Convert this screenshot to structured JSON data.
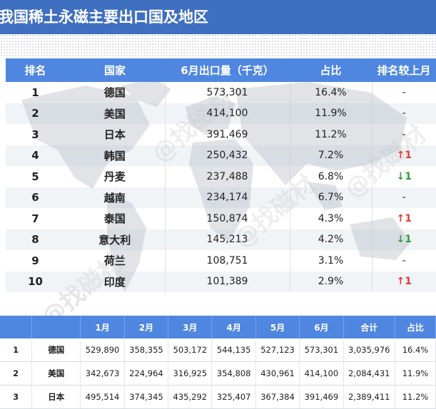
{
  "title": "我国稀土永磁主要出口国及地区",
  "main_table": {
    "headers": [
      "排名",
      "国家",
      "6月出口量（千克）",
      "占比",
      "排名较上月"
    ],
    "rows": [
      {
        "rank": "1",
        "country": "德国",
        "qty": "573,301",
        "share": "16.4%",
        "change": "-",
        "dir": "none"
      },
      {
        "rank": "2",
        "country": "美国",
        "qty": "414,100",
        "share": "11.9%",
        "change": "-",
        "dir": "none"
      },
      {
        "rank": "3",
        "country": "日本",
        "qty": "391,469",
        "share": "11.2%",
        "change": "-",
        "dir": "none"
      },
      {
        "rank": "4",
        "country": "韩国",
        "qty": "250,432",
        "share": "7.2%",
        "change": "↑1",
        "dir": "up"
      },
      {
        "rank": "5",
        "country": "丹麦",
        "qty": "237,488",
        "share": "6.8%",
        "change": "↓1",
        "dir": "down"
      },
      {
        "rank": "6",
        "country": "越南",
        "qty": "234,174",
        "share": "6.7%",
        "change": "-",
        "dir": "none"
      },
      {
        "rank": "7",
        "country": "泰国",
        "qty": "150,874",
        "share": "4.3%",
        "change": "↑1",
        "dir": "up"
      },
      {
        "rank": "8",
        "country": "意大利",
        "qty": "145,213",
        "share": "4.2%",
        "change": "↓1",
        "dir": "down"
      },
      {
        "rank": "9",
        "country": "荷兰",
        "qty": "108,751",
        "share": "3.1%",
        "change": "-",
        "dir": "none"
      },
      {
        "rank": "10",
        "country": "印度",
        "qty": "101,389",
        "share": "2.9%",
        "change": "↑1",
        "dir": "up"
      }
    ]
  },
  "monthly_table": {
    "headers": [
      "",
      "",
      "1月",
      "2月",
      "3月",
      "4月",
      "5月",
      "6月",
      "合计",
      "占比"
    ],
    "rows": [
      {
        "rank": "1",
        "country": "德国",
        "m1": "529,890",
        "m2": "358,355",
        "m3": "503,172",
        "m4": "544,135",
        "m5": "527,123",
        "m6": "573,301",
        "total": "3,035,976",
        "share": "16.4%"
      },
      {
        "rank": "2",
        "country": "美国",
        "m1": "342,673",
        "m2": "224,964",
        "m3": "316,925",
        "m4": "354,808",
        "m5": "430,961",
        "m6": "414,100",
        "total": "2,084,431",
        "share": "11.9%"
      },
      {
        "rank": "3",
        "country": "日本",
        "m1": "495,514",
        "m2": "374,345",
        "m3": "435,292",
        "m4": "325,407",
        "m5": "367,384",
        "m6": "391,469",
        "total": "2,389,411",
        "share": "11.2%"
      }
    ]
  },
  "colors": {
    "header_bar": "#3f6fc0",
    "table_header": "#4f86e0",
    "up_arrow": "#e23a3a",
    "down_arrow": "#2e9e3a"
  },
  "watermark_text": "@找磁材"
}
